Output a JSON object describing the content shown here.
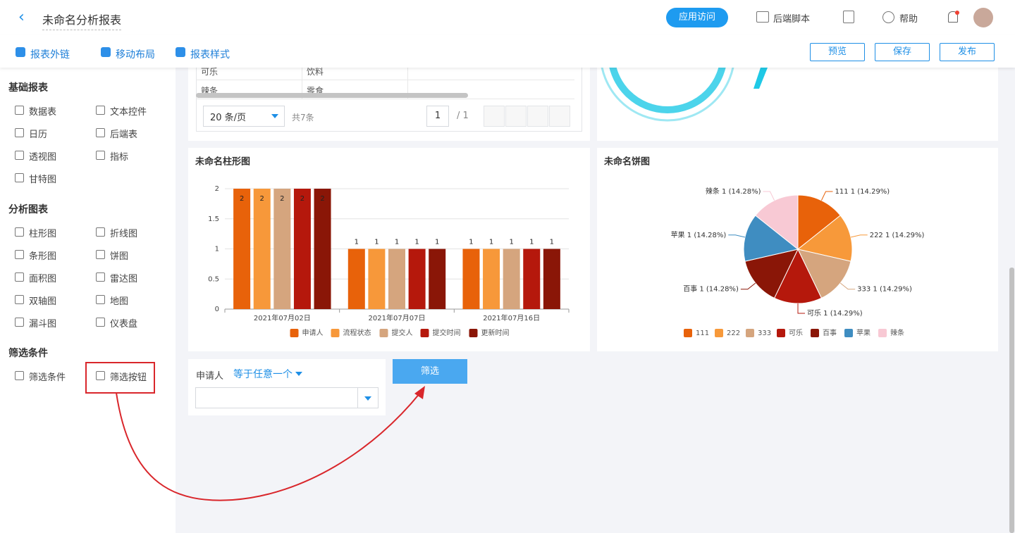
{
  "header": {
    "title": "未命名分析报表",
    "access": "应用访问",
    "script": "后端脚本",
    "help": "帮助"
  },
  "toolbar": {
    "links": [
      "报表外链",
      "移动布局",
      "报表样式"
    ],
    "buttons": [
      "预览",
      "保存",
      "发布"
    ]
  },
  "sidebar": {
    "sections": [
      {
        "title": "基础报表",
        "items": [
          "数据表",
          "文本控件",
          "日历",
          "后端表",
          "透视图",
          "指标",
          "甘特图"
        ]
      },
      {
        "title": "分析图表",
        "items": [
          "柱形图",
          "折线图",
          "条形图",
          "饼图",
          "面积图",
          "雷达图",
          "双轴图",
          "地图",
          "漏斗图",
          "仪表盘"
        ]
      },
      {
        "title": "筛选条件",
        "items": [
          "筛选条件",
          "筛选按钮"
        ]
      }
    ]
  },
  "table": {
    "rows": [
      [
        "可乐",
        "饮料"
      ],
      [
        "辣条",
        "零食"
      ]
    ]
  },
  "pagination": {
    "page_size": "20 条/页",
    "total": "共7条",
    "page": "1",
    "pages": "/ 1"
  },
  "chart_data": [
    {
      "type": "bar",
      "title": "未命名柱形图",
      "categories": [
        "2021年07月02日",
        "2021年07月07日",
        "2021年07月16日"
      ],
      "series": [
        {
          "name": "申请人",
          "color": "#e8620a",
          "values": [
            2,
            1,
            1
          ]
        },
        {
          "name": "流程状态",
          "color": "#f7983a",
          "values": [
            2,
            1,
            1
          ]
        },
        {
          "name": "提交人",
          "color": "#d5a57e",
          "values": [
            2,
            1,
            1
          ]
        },
        {
          "name": "提交时间",
          "color": "#b5180c",
          "values": [
            2,
            1,
            1
          ]
        },
        {
          "name": "更新时间",
          "color": "#8a1607",
          "values": [
            2,
            1,
            1
          ]
        }
      ],
      "ylim": [
        0,
        2
      ],
      "yticks": [
        0,
        0.5,
        1,
        1.5,
        2
      ],
      "grid": true
    },
    {
      "type": "pie",
      "title": "未命名饼图",
      "categories": [
        "111",
        "222",
        "333",
        "可乐",
        "百事",
        "苹果",
        "辣条"
      ],
      "values": [
        1,
        1,
        1,
        1,
        1,
        1,
        1
      ],
      "value_labels": [
        "111 1 (14.29%)",
        "222 1 (14.29%)",
        "333 1 (14.29%)",
        "可乐 1 (14.29%)",
        "百事 1 (14.28%)",
        "苹果 1 (14.28%)",
        "辣条 1 (14.28%)"
      ],
      "colors": [
        "#e8620a",
        "#f7993a",
        "#d5a57e",
        "#b5180c",
        "#8a1607",
        "#3f8dc1",
        "#f8c9d4"
      ]
    }
  ],
  "filter": {
    "field": "申请人",
    "operator": "等于任意一个",
    "button": "筛选"
  }
}
